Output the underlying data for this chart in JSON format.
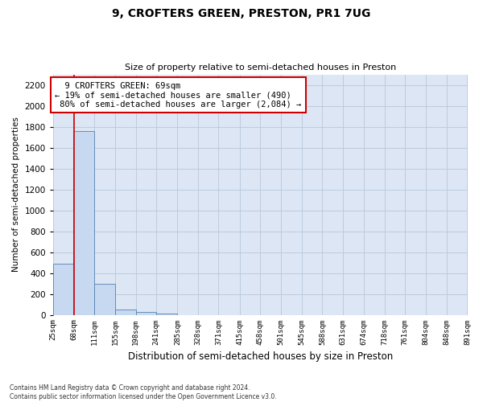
{
  "title": "9, CROFTERS GREEN, PRESTON, PR1 7UG",
  "subtitle": "Size of property relative to semi-detached houses in Preston",
  "xlabel": "Distribution of semi-detached houses by size in Preston",
  "ylabel": "Number of semi-detached properties",
  "footnote1": "Contains HM Land Registry data © Crown copyright and database right 2024.",
  "footnote2": "Contains public sector information licensed under the Open Government Licence v3.0.",
  "property_size": 69,
  "property_label": "9 CROFTERS GREEN: 69sqm",
  "pct_smaller": 19,
  "count_smaller": 490,
  "pct_larger": 80,
  "count_larger": 2084,
  "bin_edges": [
    25,
    68,
    111,
    155,
    198,
    241,
    285,
    328,
    371,
    415,
    458,
    501,
    545,
    588,
    631,
    674,
    718,
    761,
    804,
    848,
    891
  ],
  "bin_labels": [
    "25sqm",
    "68sqm",
    "111sqm",
    "155sqm",
    "198sqm",
    "241sqm",
    "285sqm",
    "328sqm",
    "371sqm",
    "415sqm",
    "458sqm",
    "501sqm",
    "545sqm",
    "588sqm",
    "631sqm",
    "674sqm",
    "718sqm",
    "761sqm",
    "804sqm",
    "848sqm",
    "891sqm"
  ],
  "bar_heights": [
    490,
    1760,
    300,
    50,
    25,
    15,
    0,
    0,
    0,
    0,
    0,
    0,
    0,
    0,
    0,
    0,
    0,
    0,
    0,
    0
  ],
  "bar_color": "#c6d9f1",
  "bar_edge_color": "#5580b0",
  "property_line_color": "#cc0000",
  "annotation_box_color": "#cc0000",
  "background_color": "#ffffff",
  "axes_bg_color": "#dce6f4",
  "grid_color": "#b8c8dc",
  "ylim": [
    0,
    2300
  ],
  "yticks": [
    0,
    200,
    400,
    600,
    800,
    1000,
    1200,
    1400,
    1600,
    1800,
    2000,
    2200
  ]
}
